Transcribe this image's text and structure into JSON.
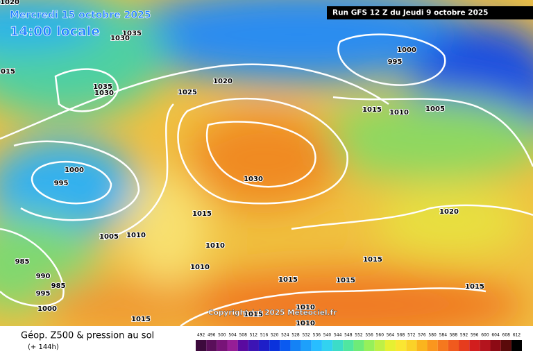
{
  "header": {
    "date": "Mercredi 15 octobre 2025",
    "time": "14:00 locale",
    "run": "Run GFS 12 Z du Jeudi 9 octobre 2025"
  },
  "isobars": [
    1020,
    1035,
    1030,
    1015,
    1035,
    1030,
    1025,
    1020,
    1000,
    995,
    1015,
    1010,
    1005,
    1000,
    995,
    1030,
    1015,
    1020,
    1005,
    1010,
    1010,
    985,
    1010,
    1015,
    990,
    985,
    995,
    1015,
    1015,
    1015,
    1000,
    1010,
    1015,
    1010,
    1015
  ],
  "copyright": "Copyright (c) 2025 Meteociel.fr",
  "legend": {
    "title": "Géop. Z500 & pression au sol",
    "lead": "(+ 144h)",
    "scale": [
      492,
      496,
      500,
      504,
      508,
      512,
      516,
      520,
      524,
      528,
      532,
      536,
      540,
      544,
      548,
      552,
      556,
      560,
      564,
      568,
      572,
      576,
      580,
      584,
      588,
      592,
      596,
      600,
      604,
      608,
      612
    ]
  }
}
